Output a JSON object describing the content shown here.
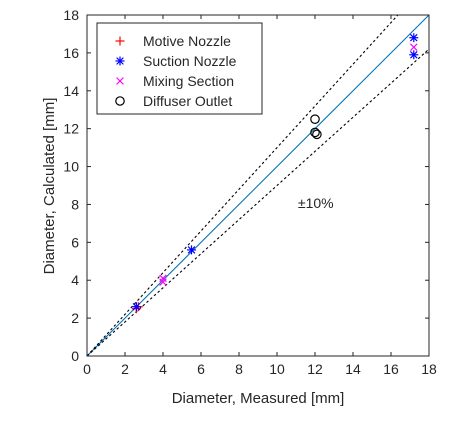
{
  "chart_data": {
    "type": "scatter",
    "xlabel": "Diameter, Measured [mm]",
    "ylabel": "Diameter, Calculated [mm]",
    "xlim": [
      0,
      18
    ],
    "ylim": [
      0,
      18
    ],
    "xticks": [
      "0",
      "2",
      "4",
      "6",
      "8",
      "10",
      "12",
      "14",
      "16",
      "18"
    ],
    "yticks": [
      "0",
      "2",
      "4",
      "6",
      "8",
      "10",
      "12",
      "14",
      "16",
      "18"
    ],
    "grid": false,
    "legend_position": "top-left",
    "annotation": {
      "text": "±10%",
      "x": 11.1,
      "y": 7.8
    },
    "reference_lines": [
      {
        "name": "",
        "slope": 1.0,
        "style": "solid",
        "color": "#0072BD"
      },
      {
        "name": "",
        "slope": 1.1,
        "style": "dotted",
        "color": "#000000"
      },
      {
        "name": "",
        "slope": 0.9,
        "style": "dotted",
        "color": "#000000"
      }
    ],
    "series": [
      {
        "name": "Motive Nozzle",
        "marker": "plus",
        "color": "#FF0000",
        "points": [
          [
            2.6,
            2.5
          ],
          [
            2.7,
            2.6
          ]
        ]
      },
      {
        "name": "Suction Nozzle",
        "marker": "asterisk",
        "color": "#0000FF",
        "points": [
          [
            2.6,
            2.6
          ],
          [
            5.5,
            5.6
          ],
          [
            17.2,
            16.8
          ],
          [
            17.2,
            15.9
          ]
        ]
      },
      {
        "name": "Mixing Section",
        "marker": "x",
        "color": "#FF00FF",
        "points": [
          [
            4.0,
            4.1
          ],
          [
            4.0,
            3.9
          ],
          [
            17.2,
            16.3
          ]
        ]
      },
      {
        "name": "Diffuser Outlet",
        "marker": "circle",
        "color": "#000000",
        "points": [
          [
            12.0,
            12.5
          ],
          [
            12.0,
            11.8
          ],
          [
            12.1,
            11.7
          ]
        ]
      }
    ]
  }
}
